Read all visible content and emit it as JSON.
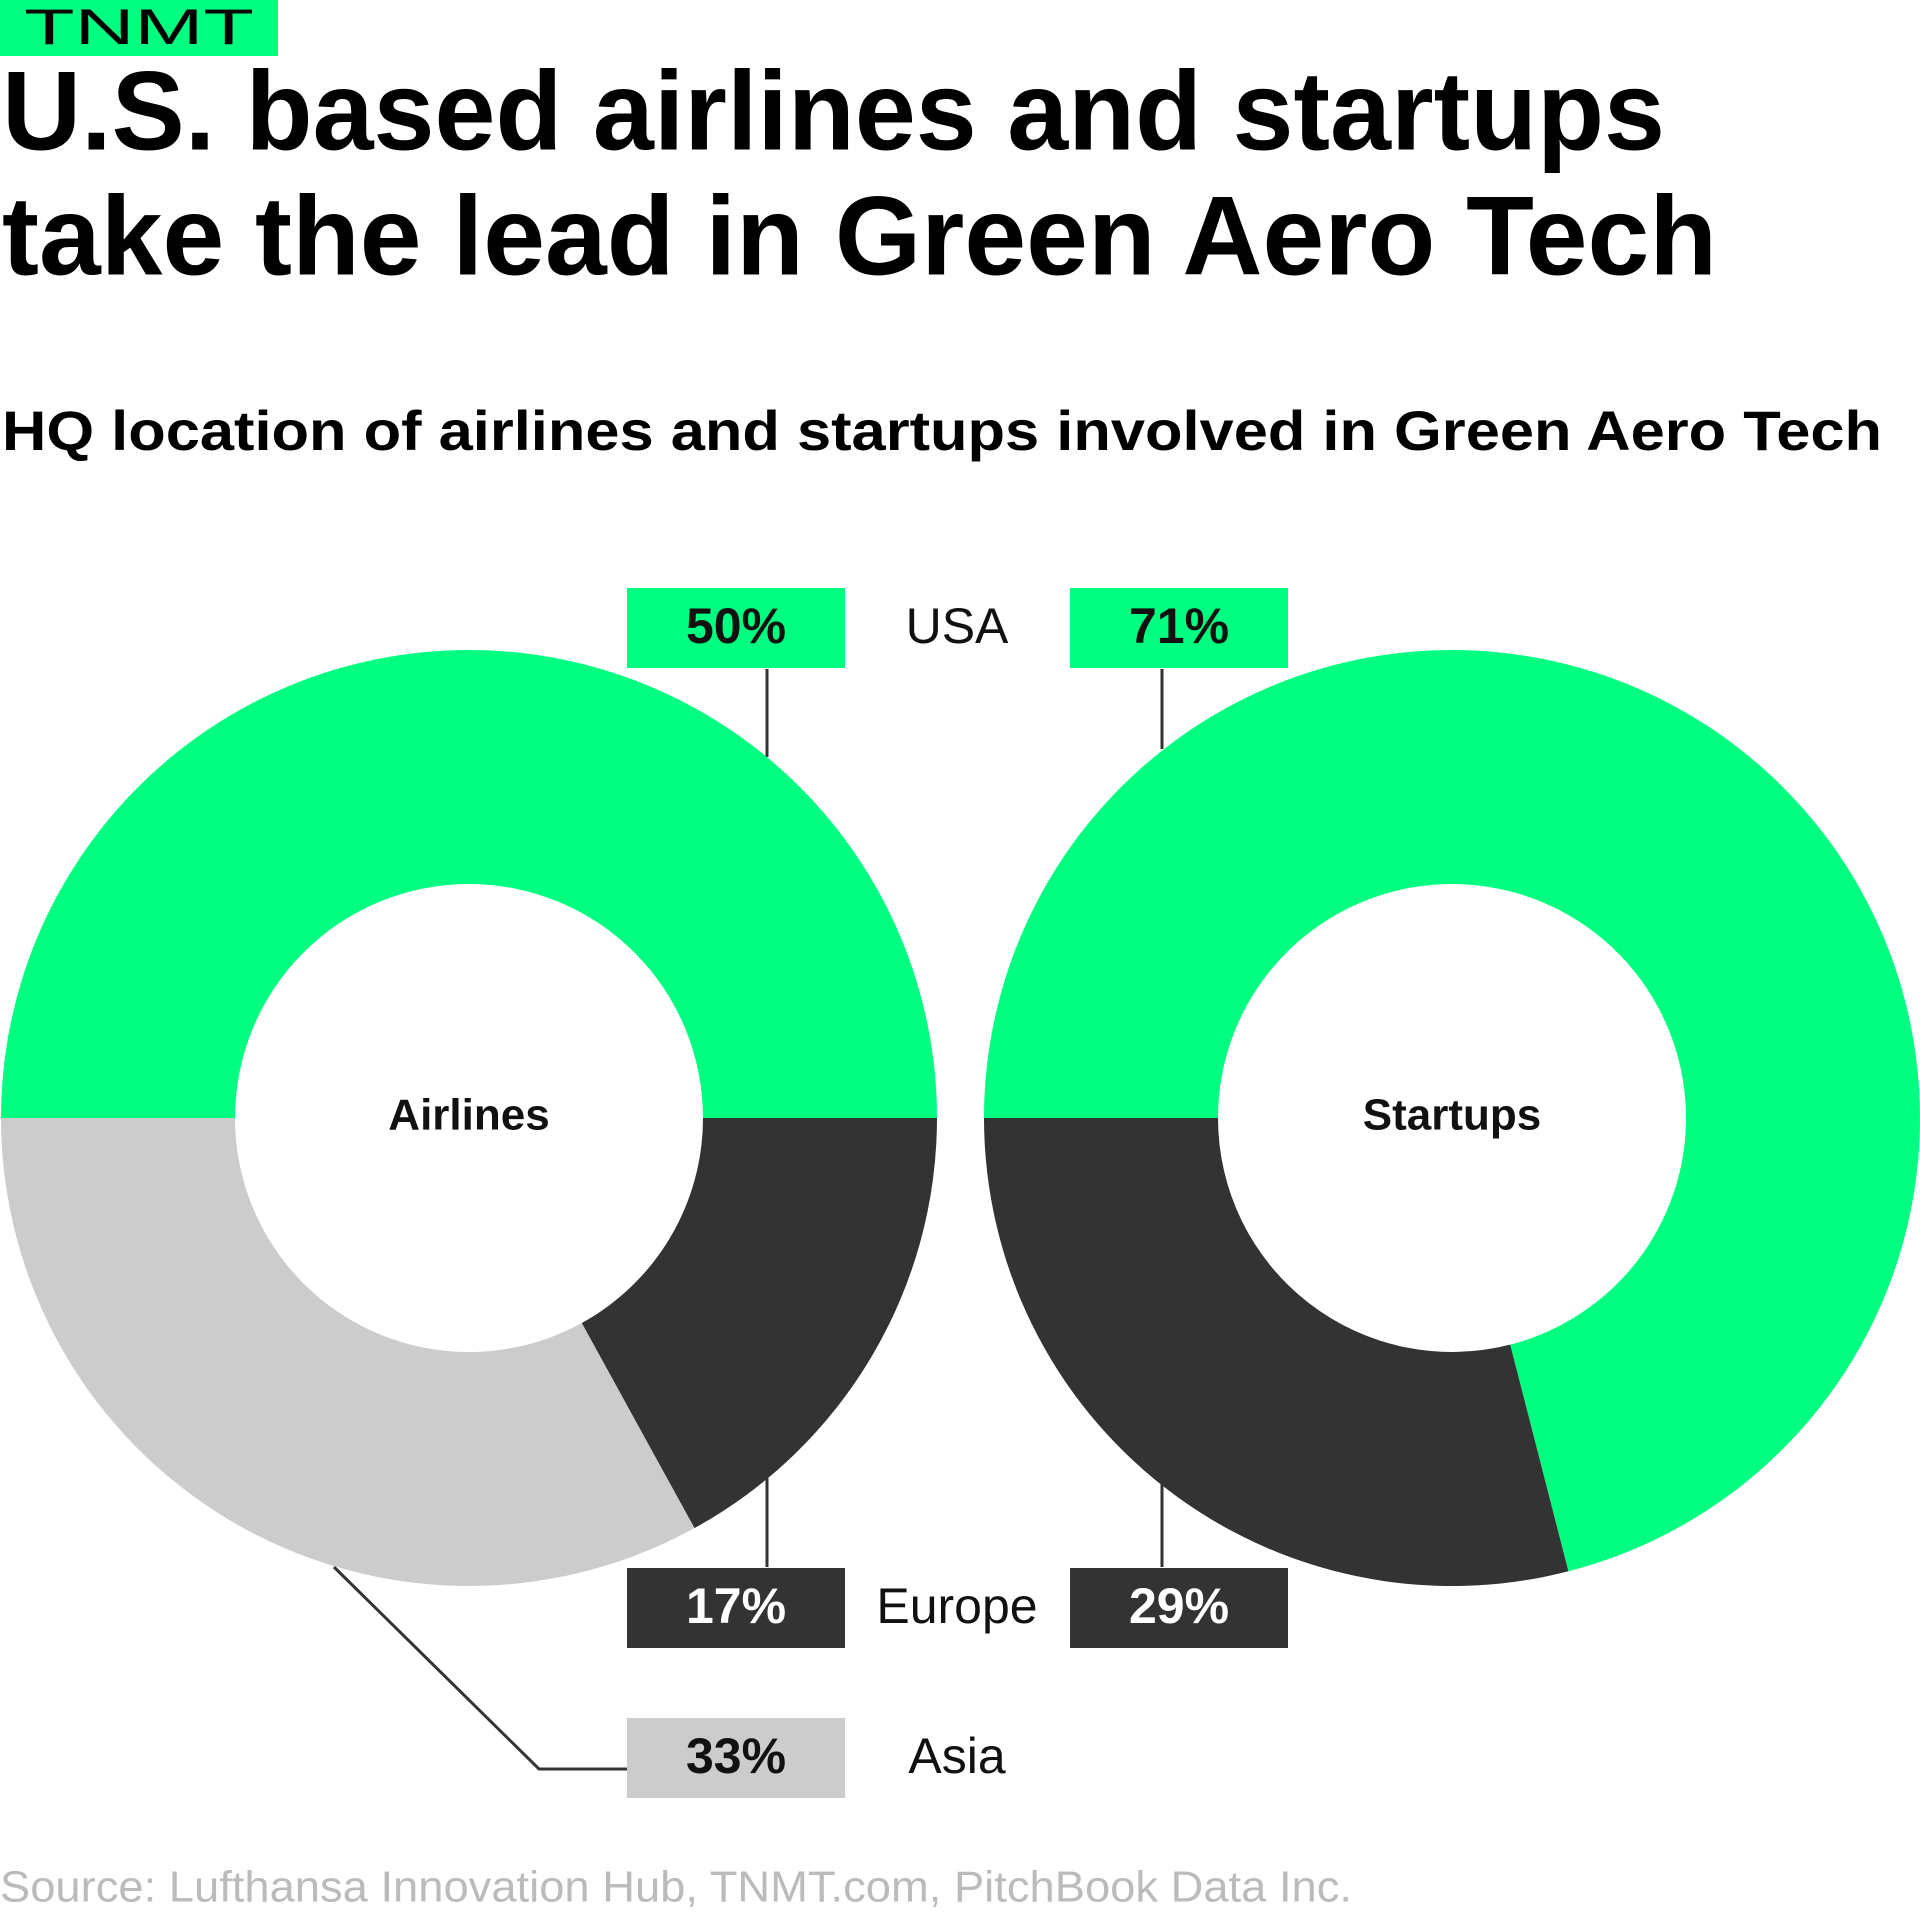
{
  "brand": "TNMT",
  "title": [
    "U.S. based airlines and startups",
    "take the lead in Green Aero Tech"
  ],
  "subtitle": "HQ location of airlines and startups involved in Green Aero Tech",
  "source": "Source: Lufthansa Innovation Hub, TNMT.com, PitchBook Data Inc.",
  "chart_data": [
    {
      "type": "donut",
      "title": "Airlines",
      "categories": [
        "USA",
        "Europe",
        "Asia"
      ],
      "values": [
        50,
        17,
        33
      ],
      "value_labels": [
        "50%",
        "17%",
        "33%"
      ],
      "colors": [
        "#00ff80",
        "#333333",
        "#cccccc"
      ]
    },
    {
      "type": "donut",
      "title": "Startups",
      "categories": [
        "USA",
        "Europe"
      ],
      "values": [
        71,
        29
      ],
      "value_labels": [
        "71%",
        "29%"
      ],
      "colors": [
        "#00ff80",
        "#333333"
      ]
    }
  ]
}
